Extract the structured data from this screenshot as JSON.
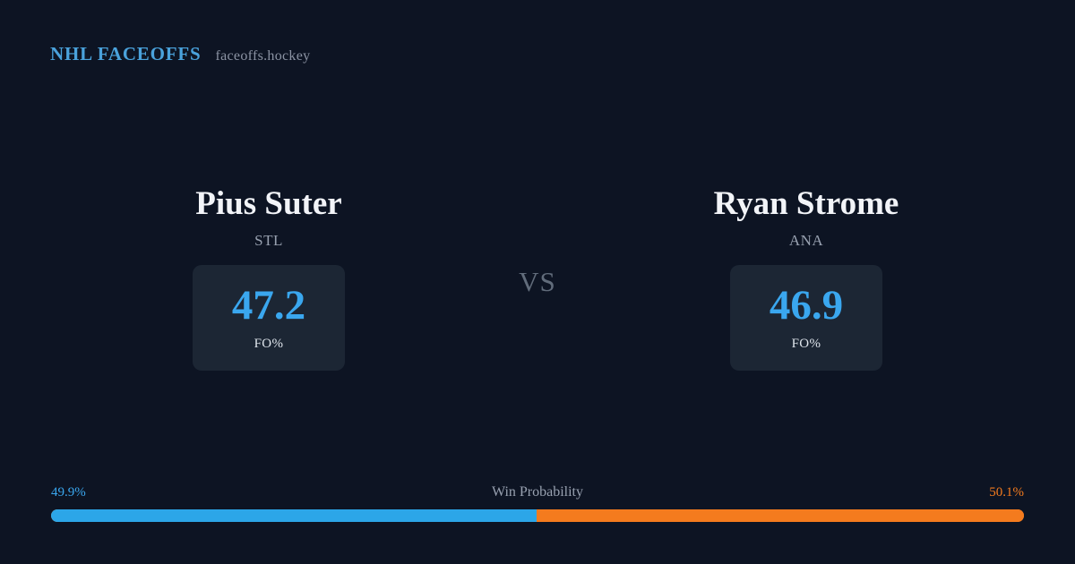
{
  "header": {
    "brand": "NHL FACEOFFS",
    "site": "faceoffs.hockey"
  },
  "matchup": {
    "vs_label": "VS",
    "players": [
      {
        "name": "Pius Suter",
        "team": "STL",
        "stat_value": "47.2",
        "stat_label": "FO%"
      },
      {
        "name": "Ryan Strome",
        "team": "ANA",
        "stat_value": "46.9",
        "stat_label": "FO%"
      }
    ]
  },
  "win_probability": {
    "label": "Win Probability",
    "left_pct": "49.9%",
    "right_pct": "50.1%",
    "left_value": 49.9,
    "right_value": 50.1
  },
  "colors": {
    "background": "#0d1423",
    "card_box": "#1c2634",
    "accent_blue": "#3aa7ef",
    "accent_orange": "#f47b1e",
    "brand_blue": "#4aa2dc",
    "muted_text": "#98a1b0"
  },
  "chart_data": {
    "type": "bar",
    "title": "NHL Faceoffs — Pius Suter (STL) vs Ryan Strome (ANA)",
    "categories": [
      "Pius Suter (STL)",
      "Ryan Strome (ANA)"
    ],
    "series": [
      {
        "name": "FO%",
        "values": [
          47.2,
          46.9
        ]
      },
      {
        "name": "Win Probability %",
        "values": [
          49.9,
          50.1
        ]
      }
    ],
    "xlabel": "",
    "ylabel": "",
    "legend_position": "none",
    "grid": false,
    "annotations": [
      "VS",
      "Win Probability"
    ]
  }
}
